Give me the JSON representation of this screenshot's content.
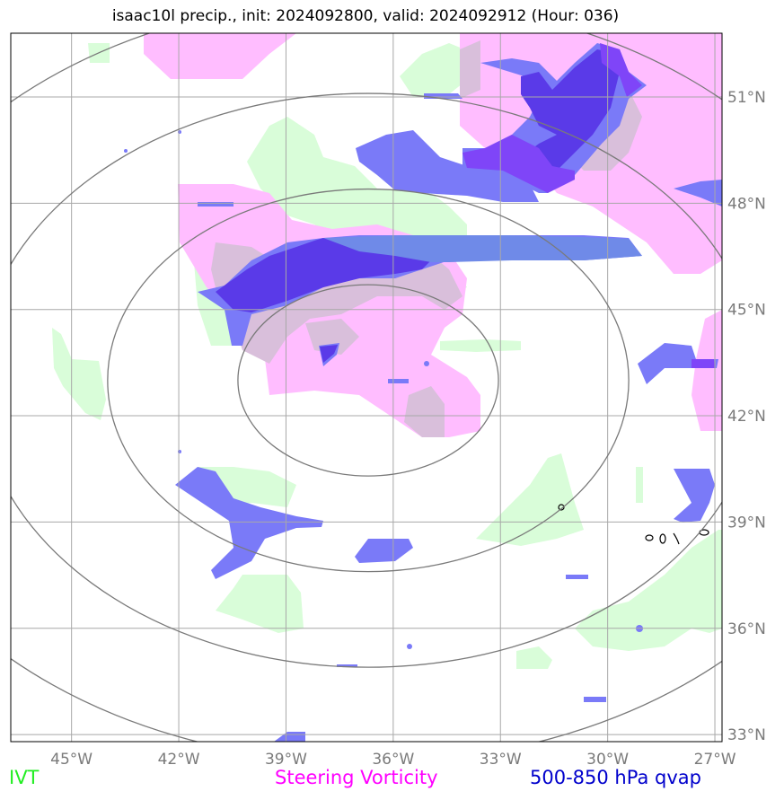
{
  "title": "isaac10l precip., init: 2024092800, valid: 2024092912 (Hour: 036)",
  "colors": {
    "ivt": "#22ee22",
    "ivt_fill": "#d9fdd9",
    "steering_vorticity": "#ff00ff",
    "steering_vorticity_fill": "#ffbdff",
    "qvap": "#0000cc",
    "qvap_fill": "#7a7af8",
    "qvap_dark": "#5a3ae8",
    "qvap_violet": "#7f45f8",
    "qvap_light": "#6f8ae8",
    "overlap": "#d9bfdb",
    "grid": "#a8a8a8",
    "range_rings": "#7a7a7a"
  },
  "map": {
    "lon_ticks": [
      "45°W",
      "42°W",
      "39°W",
      "36°W",
      "33°W",
      "30°W",
      "27°W"
    ],
    "lat_ticks": [
      "51°N",
      "48°N",
      "45°N",
      "42°N",
      "39°N",
      "36°N",
      "33°N"
    ],
    "lon_values": [
      -45,
      -42,
      -39,
      -36,
      -33,
      -30,
      -27
    ],
    "lat_values": [
      51,
      48,
      45,
      42,
      39,
      36,
      33
    ],
    "extent": {
      "lon_min": -46.7,
      "lon_max": -26.8,
      "lat_min": 32.8,
      "lat_max": 52.8
    },
    "storm_center": {
      "lon": -36.7,
      "lat": 43.0
    },
    "range_rings": 4
  },
  "legend": {
    "ivt": "IVT",
    "steering_vorticity": "Steering Vorticity",
    "qvap": "500-850 hPa qvap"
  }
}
